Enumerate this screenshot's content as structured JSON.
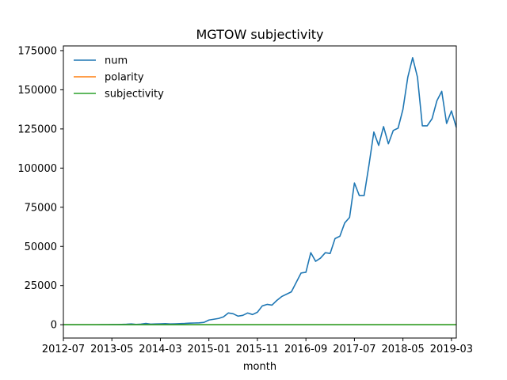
{
  "chart_data": {
    "type": "line",
    "title": "MGTOW subjectivity",
    "xlabel": "month",
    "ylabel": "",
    "xlim": [
      "2012-07",
      "2019-04"
    ],
    "ylim": [
      -8500,
      178000
    ],
    "x_ticks": [
      "2012-07",
      "2013-05",
      "2014-03",
      "2015-01",
      "2015-11",
      "2016-09",
      "2017-07",
      "2018-05",
      "2019-03"
    ],
    "y_ticks": [
      0,
      25000,
      50000,
      75000,
      100000,
      125000,
      150000,
      175000
    ],
    "y_tick_labels": [
      "0",
      "25000",
      "50000",
      "75000",
      "100000",
      "125000",
      "150000",
      "175000"
    ],
    "legend_position": "upper-left",
    "grid": false,
    "x": [
      "2012-07",
      "2012-08",
      "2012-09",
      "2012-10",
      "2012-11",
      "2012-12",
      "2013-01",
      "2013-02",
      "2013-03",
      "2013-04",
      "2013-05",
      "2013-06",
      "2013-07",
      "2013-08",
      "2013-09",
      "2013-10",
      "2013-11",
      "2013-12",
      "2014-01",
      "2014-02",
      "2014-03",
      "2014-04",
      "2014-05",
      "2014-06",
      "2014-07",
      "2014-08",
      "2014-09",
      "2014-10",
      "2014-11",
      "2014-12",
      "2015-01",
      "2015-02",
      "2015-03",
      "2015-04",
      "2015-05",
      "2015-06",
      "2015-07",
      "2015-08",
      "2015-09",
      "2015-10",
      "2015-11",
      "2015-12",
      "2016-01",
      "2016-02",
      "2016-03",
      "2016-04",
      "2016-05",
      "2016-06",
      "2016-07",
      "2016-08",
      "2016-09",
      "2016-10",
      "2016-11",
      "2016-12",
      "2017-01",
      "2017-02",
      "2017-03",
      "2017-04",
      "2017-05",
      "2017-06",
      "2017-07",
      "2017-08",
      "2017-09",
      "2017-10",
      "2017-11",
      "2017-12",
      "2018-01",
      "2018-02",
      "2018-03",
      "2018-04",
      "2018-05",
      "2018-06",
      "2018-07",
      "2018-08",
      "2018-09",
      "2018-10",
      "2018-11",
      "2018-12",
      "2019-01",
      "2019-02",
      "2019-03",
      "2019-04"
    ],
    "series": [
      {
        "name": "num",
        "color": "#1f77b4",
        "values": [
          0,
          0,
          0,
          0,
          0,
          0,
          0,
          0,
          50,
          50,
          100,
          100,
          200,
          300,
          500,
          200,
          400,
          800,
          400,
          500,
          600,
          700,
          500,
          600,
          700,
          800,
          1000,
          1100,
          1200,
          1500,
          3000,
          3500,
          4000,
          5000,
          7500,
          7000,
          5500,
          6000,
          7500,
          6500,
          8000,
          12000,
          13000,
          12500,
          15500,
          18000,
          19500,
          21000,
          27000,
          33000,
          33500,
          46000,
          40500,
          42500,
          46000,
          45500,
          55000,
          56500,
          65000,
          68500,
          90500,
          82500,
          82500,
          102000,
          123000,
          114500,
          126500,
          115500,
          124000,
          125500,
          137500,
          158000,
          170500,
          158000,
          127000,
          127000,
          131500,
          143000,
          149000,
          128500,
          136500,
          126000
        ]
      },
      {
        "name": "polarity",
        "color": "#ff7f0e",
        "values": [
          0,
          0,
          0,
          0,
          0,
          0,
          0,
          0,
          0,
          0,
          0,
          0,
          0,
          0,
          0,
          0,
          0,
          0,
          0,
          0,
          0,
          0,
          0,
          0,
          0,
          0,
          0,
          0,
          0,
          0,
          0,
          0,
          0,
          0,
          0,
          0,
          0,
          0,
          0,
          0,
          0,
          0,
          0,
          0,
          0,
          0,
          0,
          0,
          0,
          0,
          0,
          0,
          0,
          0,
          0,
          0,
          0,
          0,
          0,
          0,
          0,
          0,
          0,
          0,
          0,
          0,
          0,
          0,
          0,
          0,
          0,
          0,
          0,
          0,
          0,
          0,
          0,
          0,
          0,
          0,
          0,
          0
        ]
      },
      {
        "name": "subjectivity",
        "color": "#2ca02c",
        "values": [
          0,
          0,
          0,
          0,
          0,
          0,
          0,
          0,
          0,
          0,
          0,
          0,
          0,
          0,
          0,
          0,
          0,
          0,
          0,
          0,
          0,
          0,
          0,
          0,
          0,
          0,
          0,
          0,
          0,
          0,
          0,
          0,
          0,
          0,
          0,
          0,
          0,
          0,
          0,
          0,
          0,
          0,
          0,
          0,
          0,
          0,
          0,
          0,
          0,
          0,
          0,
          0,
          0,
          0,
          0,
          0,
          0,
          0,
          0,
          0,
          0,
          0,
          0,
          0,
          0,
          0,
          0,
          0,
          0,
          0,
          0,
          0,
          0,
          0,
          0,
          0,
          0,
          0,
          0,
          0,
          0,
          0
        ]
      }
    ]
  }
}
